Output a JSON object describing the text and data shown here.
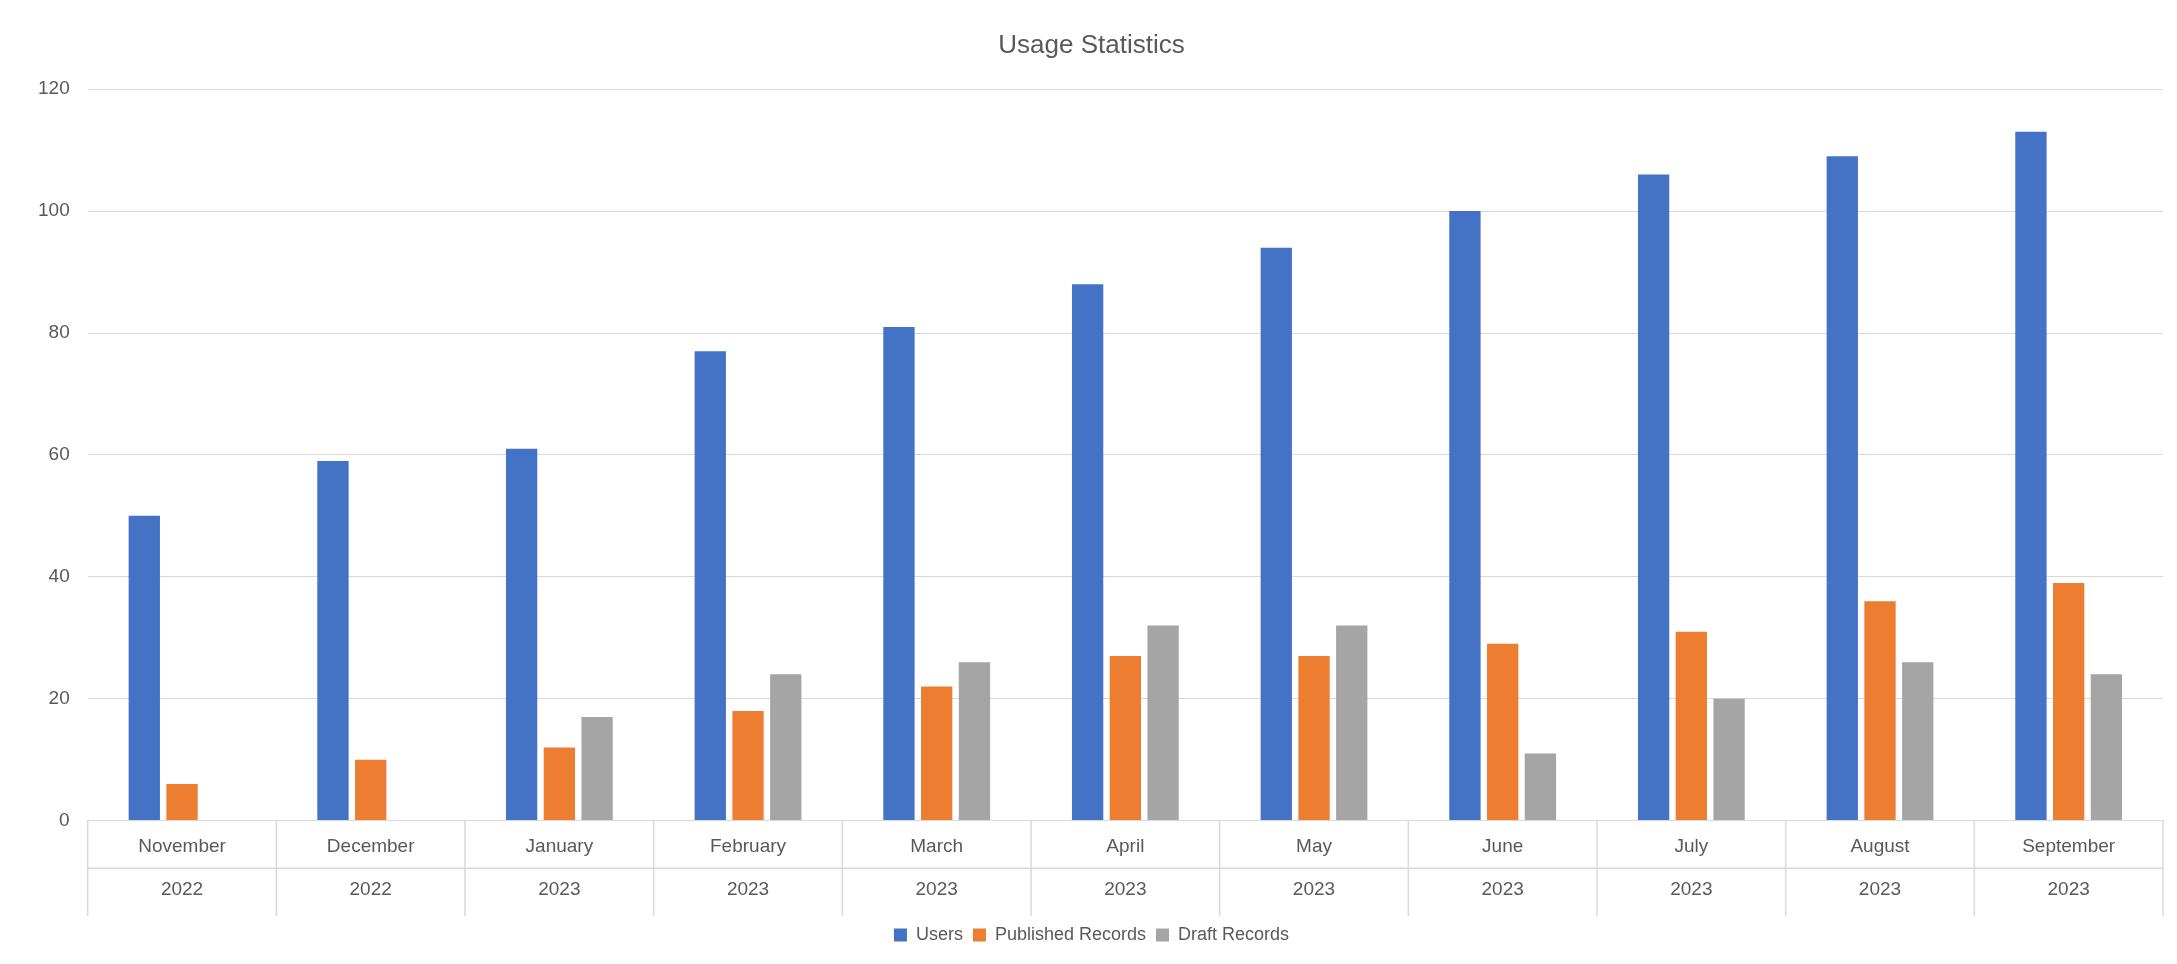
{
  "chart_data": {
    "type": "bar",
    "title": "Usage Statistics",
    "categories": [
      "November 2022",
      "December 2022",
      "January 2023",
      "February 2023",
      "March 2023",
      "April 2023",
      "May 2023",
      "June 2023",
      "July 2023",
      "August 2023",
      "September 2023"
    ],
    "series": [
      {
        "name": "Users",
        "color": "#4472c4",
        "values": [
          50,
          59,
          61,
          77,
          81,
          88,
          94,
          100,
          106,
          109,
          113
        ]
      },
      {
        "name": "Published Records",
        "color": "#ed7d31",
        "values": [
          6,
          10,
          12,
          18,
          22,
          27,
          27,
          29,
          31,
          36,
          39
        ]
      },
      {
        "name": "Draft Records",
        "color": "#a5a5a5",
        "values": [
          null,
          null,
          17,
          24,
          26,
          32,
          32,
          11,
          20,
          26,
          24
        ]
      }
    ],
    "ylim": [
      0,
      120
    ],
    "yticks": [
      0,
      20,
      40,
      60,
      80,
      100,
      120
    ],
    "grid": "y",
    "legend": "bottom"
  }
}
